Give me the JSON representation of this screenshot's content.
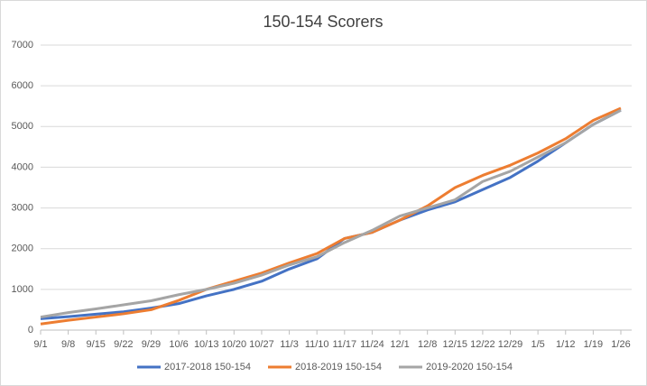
{
  "chart_data": {
    "type": "line",
    "title": "150-154 Scorers",
    "categories": [
      "9/1",
      "9/8",
      "9/15",
      "9/22",
      "9/29",
      "10/6",
      "10/13",
      "10/20",
      "10/27",
      "11/3",
      "11/10",
      "11/17",
      "11/24",
      "12/1",
      "12/8",
      "12/15",
      "12/22",
      "12/29",
      "1/5",
      "1/12",
      "1/19",
      "1/26"
    ],
    "series": [
      {
        "name": "2017-2018 150-154",
        "color": "#4472c4",
        "values": [
          280,
          330,
          390,
          450,
          540,
          650,
          840,
          1000,
          1200,
          1500,
          1750,
          2250,
          2400,
          2700,
          2950,
          3150,
          3450,
          3750,
          4150,
          4600,
          5050,
          5400
        ]
      },
      {
        "name": "2018-2019 150-154",
        "color": "#ed7d31",
        "values": [
          150,
          240,
          320,
          400,
          500,
          730,
          1000,
          1200,
          1400,
          1650,
          1880,
          2250,
          2400,
          2700,
          3050,
          3500,
          3800,
          4050,
          4350,
          4700,
          5150,
          5450
        ]
      },
      {
        "name": "2019-2020 150-154",
        "color": "#a5a5a5",
        "values": [
          320,
          430,
          520,
          620,
          720,
          870,
          1000,
          1150,
          1350,
          1600,
          1800,
          2150,
          2450,
          2800,
          3000,
          3200,
          3650,
          3900,
          4250,
          4600,
          5050,
          5400
        ]
      }
    ],
    "ylim": [
      0,
      7000
    ],
    "yticks": [
      0,
      1000,
      2000,
      3000,
      4000,
      5000,
      6000,
      7000
    ],
    "grid": true,
    "legend": "bottom"
  }
}
